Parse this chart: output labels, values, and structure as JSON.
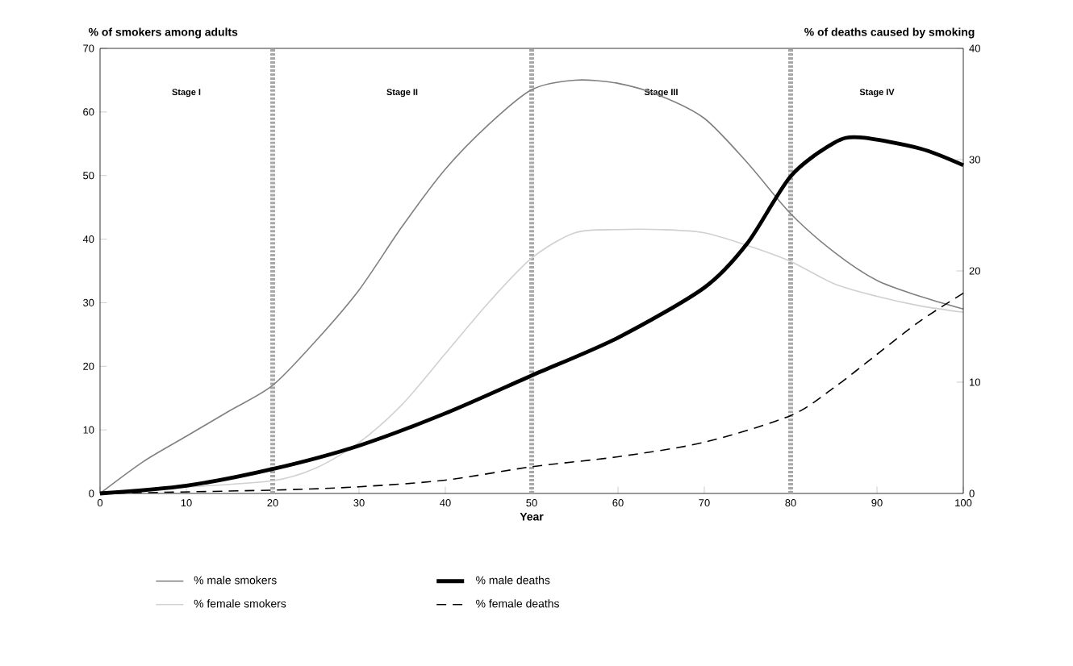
{
  "chart_data": {
    "type": "line",
    "xlabel": "Year",
    "ylabel": "% of smokers among adults",
    "y2label": "% of deaths caused by smoking",
    "xlim": [
      0,
      100
    ],
    "xticks": [
      0,
      10,
      20,
      30,
      40,
      50,
      60,
      70,
      80,
      90,
      100
    ],
    "ylim": [
      0,
      70
    ],
    "yticks": [
      0,
      10,
      20,
      30,
      40,
      50,
      60,
      70
    ],
    "y2lim": [
      0,
      40
    ],
    "y2ticks": [
      0,
      10,
      20,
      30,
      40
    ],
    "series": [
      {
        "name": "% male smokers",
        "color": "#808080",
        "line_style": "solid",
        "x": [
          0,
          5,
          10,
          15,
          20,
          25,
          30,
          35,
          40,
          45,
          50,
          55,
          60,
          65,
          70,
          75,
          80,
          85,
          90,
          95,
          100
        ],
        "values": [
          0,
          5,
          9,
          13,
          17,
          24,
          32,
          42,
          51,
          58,
          63.5,
          65,
          64.5,
          62.5,
          59,
          52,
          44,
          38,
          33.5,
          31,
          29
        ]
      },
      {
        "name": "% female smokers",
        "color": "#d0d0d0",
        "line_style": "solid",
        "x": [
          0,
          10,
          20,
          25,
          30,
          35,
          40,
          45,
          50,
          55,
          60,
          65,
          70,
          75,
          80,
          85,
          90,
          95,
          100
        ],
        "values": [
          0,
          1,
          2,
          4,
          8,
          14,
          22,
          30,
          37,
          41,
          41.5,
          41.5,
          41,
          39,
          36.5,
          33,
          31,
          29.5,
          28.5
        ]
      },
      {
        "name": "% male deaths",
        "color": "#000000",
        "line_style": "solid",
        "axis": "y2",
        "x": [
          0,
          10,
          20,
          30,
          40,
          50,
          60,
          70,
          75,
          80,
          85,
          88,
          95,
          100
        ],
        "values": [
          0,
          0.7,
          2.2,
          4.3,
          7.2,
          10.6,
          14,
          18.5,
          22.5,
          28.5,
          31.5,
          32,
          31,
          29.5
        ]
      },
      {
        "name": "% female deaths",
        "color": "#000000",
        "line_style": "dashed",
        "axis": "y2",
        "x": [
          0,
          20,
          30,
          40,
          50,
          60,
          70,
          80,
          85,
          90,
          95,
          100
        ],
        "values": [
          0,
          0.3,
          0.6,
          1.2,
          2.4,
          3.3,
          4.6,
          7,
          9.5,
          12.5,
          15.5,
          18
        ]
      }
    ],
    "annotations": [
      "Stage I",
      "Stage II",
      "Stage III",
      "Stage IV"
    ],
    "ref_lines": [
      {
        "axis": "x",
        "value": 20,
        "color": "#a8a8a8",
        "line_style": "dotted"
      },
      {
        "axis": "x",
        "value": 50,
        "color": "#a8a8a8",
        "line_style": "dotted"
      },
      {
        "axis": "x",
        "value": 80,
        "color": "#a8a8a8",
        "line_style": "dotted"
      }
    ],
    "legend": "bottom",
    "grid": false,
    "marker": "none"
  }
}
